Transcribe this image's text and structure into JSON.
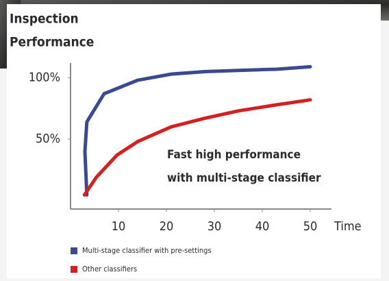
{
  "chart_data": {
    "type": "line",
    "title": [
      "Inspection",
      "Performance"
    ],
    "xlabel": "Time",
    "annotation": [
      "Fast high performance",
      "with multi-stage classifier"
    ],
    "xlim": [
      0,
      54
    ],
    "ylim": [
      -7,
      112
    ],
    "xticks": [
      10,
      20,
      30,
      40,
      50
    ],
    "yticks": [
      {
        "value": 50,
        "label": "50%"
      },
      {
        "value": 100,
        "label": "100%"
      }
    ],
    "series": [
      {
        "name": "Multi-stage classifier with pre-settings",
        "color": "#3b4a8e",
        "x": [
          3.4,
          3.0,
          3.4,
          7,
          14,
          21,
          28,
          35,
          43,
          50
        ],
        "values": [
          4.5,
          40,
          64,
          87,
          98,
          103,
          105,
          106,
          107,
          109
        ]
      },
      {
        "name": "Other classifiers",
        "color": "#d42020",
        "x": [
          2.9,
          5.4,
          9.7,
          14,
          21,
          28,
          35,
          43,
          50
        ],
        "values": [
          4.5,
          19,
          37,
          48,
          60,
          67,
          73,
          78,
          82
        ]
      }
    ]
  }
}
